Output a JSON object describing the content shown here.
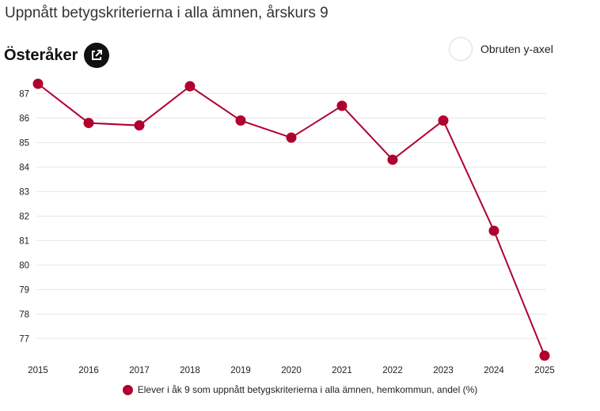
{
  "page": {
    "title": "Uppnått betygskriterierna i alla ämnen, årskurs 9",
    "municipality": "Österåker"
  },
  "controls": {
    "unbroken_axis_label": "Obruten y-axel",
    "unbroken_axis_checked": false
  },
  "colors": {
    "series": "#b0002f",
    "grid": "#e5e5e5"
  },
  "chart_data": {
    "type": "line",
    "x": [
      "2015",
      "2016",
      "2017",
      "2018",
      "2019",
      "2020",
      "2021",
      "2022",
      "2023",
      "2024",
      "2025"
    ],
    "series": [
      {
        "name": "Elever i åk 9 som uppnått betygskriterierna i alla ämnen, hemkommun, andel (%)",
        "values": [
          87.4,
          85.8,
          85.7,
          87.3,
          85.9,
          85.2,
          86.5,
          84.3,
          85.9,
          81.4,
          76.3
        ]
      }
    ],
    "yticks": [
      77,
      78,
      79,
      80,
      81,
      82,
      83,
      84,
      85,
      86,
      87
    ],
    "ylim": [
      76.3,
      87.4
    ],
    "grid": true,
    "legend": "bottom-center"
  }
}
